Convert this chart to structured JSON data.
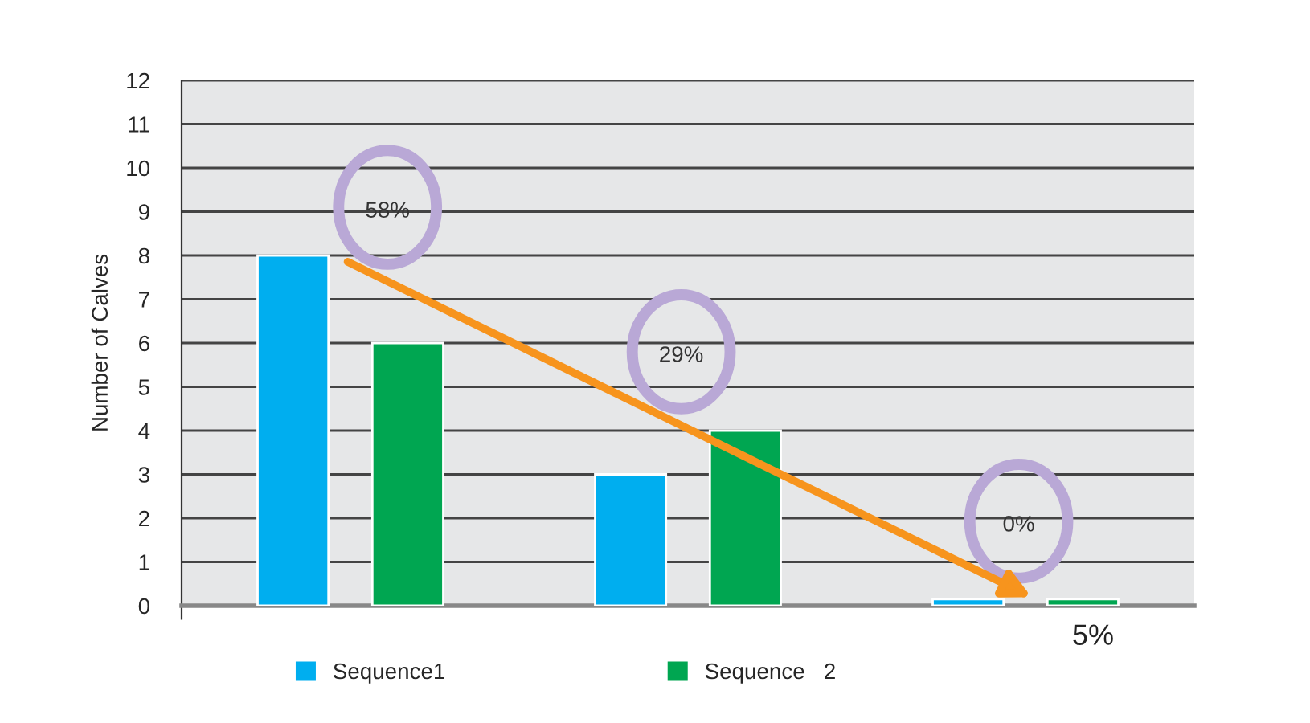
{
  "chart_data": {
    "type": "bar",
    "ylabel": "Number of Calves",
    "categories": [
      null,
      null,
      null
    ],
    "series": [
      {
        "name": "Sequence1",
        "color": "#00aeef",
        "values": [
          8,
          3,
          0.15
        ]
      },
      {
        "name": "Sequence   2",
        "color": "#00a651",
        "values": [
          6,
          4,
          0.15
        ]
      }
    ],
    "ylim": [
      0,
      12
    ],
    "yticks": [
      0,
      1,
      2,
      3,
      4,
      5,
      6,
      7,
      8,
      9,
      10,
      11,
      12
    ],
    "grid": "y",
    "legend": "bottom",
    "annotations": [
      "58%",
      "29%",
      "0%",
      "5%"
    ]
  }
}
